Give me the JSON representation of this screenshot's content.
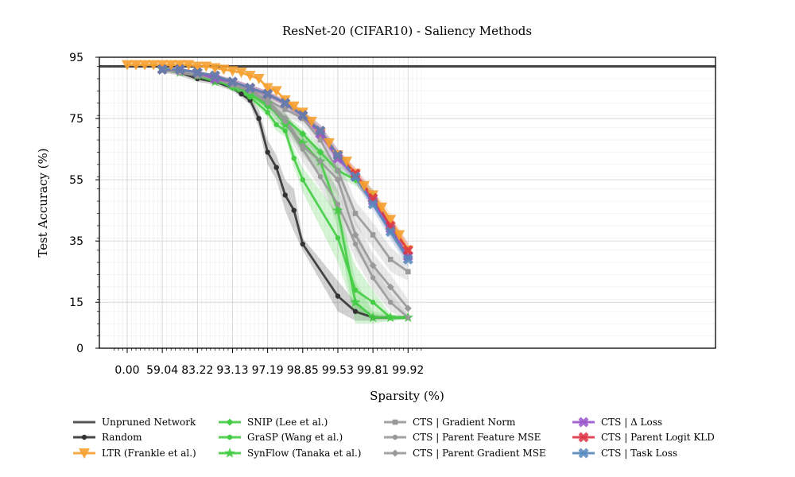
{
  "chart_data": {
    "type": "line",
    "title": "ResNet-20 (CIFAR10) - Saliency Methods",
    "xlabel": "Sparsity (%)",
    "ylabel": "Test Accuracy (%)",
    "ylim": [
      0,
      95
    ],
    "y_ticks": [
      0,
      15,
      35,
      55,
      75,
      95
    ],
    "x_tick_labels": [
      "0.00",
      "59.04",
      "83.22",
      "93.13",
      "97.19",
      "98.85",
      "99.53",
      "99.81",
      "99.92"
    ],
    "x_positions": [
      "0.00",
      "20.00",
      "36.00",
      "48.80",
      "59.04",
      "67.23",
      "73.79",
      "79.03",
      "83.22",
      "86.58",
      "89.26",
      "91.41",
      "93.13",
      "94.50",
      "95.60",
      "96.48",
      "97.19",
      "97.75",
      "98.20",
      "98.56",
      "98.85",
      "99.08",
      "99.26",
      "99.41",
      "99.53",
      "99.62",
      "99.70",
      "99.76",
      "99.81",
      "99.85",
      "99.88",
      "99.90",
      "99.92"
    ],
    "grid": true,
    "legend_position": "bottom",
    "series": [
      {
        "name": "Unpruned Network",
        "color": "#444444",
        "marker": "none",
        "idx": [
          0,
          34
        ],
        "y": [
          92,
          92
        ]
      },
      {
        "name": "Random",
        "color": "#333333",
        "marker": "circle",
        "idx": [
          4,
          6,
          8,
          10,
          12,
          13,
          14,
          15,
          16,
          17,
          18,
          19,
          20,
          24,
          26,
          28,
          32
        ],
        "y": [
          91,
          90,
          88,
          87,
          85,
          83,
          81,
          75,
          64,
          59,
          50,
          45,
          34,
          17,
          12,
          10,
          10
        ],
        "band": [
          1,
          1,
          1,
          1,
          1,
          1,
          1.5,
          3,
          4,
          4,
          5,
          7,
          2,
          5,
          3,
          1,
          0.5
        ]
      },
      {
        "name": "SNIP (Lee et al.)",
        "color": "#44cc44",
        "marker": "diamond",
        "idx": [
          4,
          6,
          8,
          10,
          12,
          14,
          16,
          18,
          20,
          22,
          24,
          26,
          28,
          30,
          32
        ],
        "y": [
          91,
          90,
          89,
          88,
          86,
          83,
          79,
          75,
          70,
          64,
          58,
          55,
          50,
          39,
          30
        ],
        "band": [
          0.5,
          0.5,
          0.5,
          0.5,
          1,
          1,
          1,
          1.5,
          1.5,
          2,
          2,
          2,
          2,
          2,
          2
        ]
      },
      {
        "name": "GraSP (Wang et al.)",
        "color": "#44cc44",
        "marker": "circle",
        "idx": [
          4,
          6,
          8,
          10,
          12,
          14,
          16,
          17,
          18,
          19,
          20,
          24,
          26,
          28,
          30,
          32
        ],
        "y": [
          91,
          90,
          89,
          88,
          85,
          82,
          77,
          73,
          71,
          62,
          55,
          36,
          19,
          15,
          10,
          10
        ],
        "band": [
          0.5,
          0.5,
          0.5,
          1,
          1,
          1,
          1.5,
          2,
          2,
          3,
          4,
          8,
          8,
          4,
          1,
          0.5
        ]
      },
      {
        "name": "SynFlow (Tanaka et al.)",
        "color": "#44cc44",
        "marker": "star",
        "idx": [
          4,
          6,
          8,
          10,
          12,
          14,
          16,
          18,
          20,
          22,
          24,
          26,
          28,
          30,
          32
        ],
        "y": [
          91,
          90,
          89,
          87,
          86,
          83,
          80,
          73,
          67,
          61,
          45,
          15,
          10,
          10,
          10
        ],
        "band": [
          0.5,
          0.5,
          0.5,
          0.5,
          1,
          1,
          1.5,
          2,
          3,
          4,
          6,
          7,
          2,
          1,
          0.5
        ]
      },
      {
        "name": "LTR (Frankle et al.)",
        "color": "#f5a030",
        "marker": "triangle-down",
        "idx": [
          0,
          1,
          2,
          3,
          4,
          5,
          6,
          7,
          8,
          9,
          10,
          11,
          12,
          13,
          14,
          15,
          16,
          17,
          18,
          19,
          20,
          21,
          22,
          23,
          24,
          25,
          26,
          27,
          28,
          29,
          30,
          31,
          32
        ],
        "y": [
          92.5,
          92.5,
          92.5,
          92.5,
          92.5,
          92.5,
          92.5,
          92.5,
          92,
          92,
          91.5,
          91,
          90.5,
          90,
          89,
          88,
          85,
          84,
          81,
          79,
          77,
          74,
          70,
          67,
          63,
          61,
          57,
          53,
          50,
          46,
          42,
          37,
          32
        ],
        "band": [
          0.3,
          0.3,
          0.3,
          0.3,
          0.3,
          0.3,
          0.3,
          0.3,
          0.3,
          0.3,
          0.3,
          0.3,
          0.3,
          0.3,
          0.4,
          0.4,
          0.5,
          0.5,
          0.6,
          0.7,
          0.8,
          0.9,
          1,
          1,
          1,
          1.2,
          1.2,
          1.5,
          1.5,
          2,
          2,
          2,
          2
        ]
      },
      {
        "name": "CTS | Gradient Norm",
        "color": "#999999",
        "marker": "square",
        "idx": [
          4,
          6,
          8,
          10,
          12,
          14,
          16,
          18,
          20,
          22,
          24,
          26,
          28,
          30,
          32
        ],
        "y": [
          91,
          90,
          89,
          88,
          86,
          84,
          81,
          78,
          75,
          68,
          58,
          44,
          37,
          29,
          25
        ],
        "band": [
          0.5,
          0.5,
          0.5,
          0.5,
          1,
          1,
          1.5,
          2,
          2,
          3,
          4,
          4,
          4,
          4,
          3
        ]
      },
      {
        "name": "CTS | Parent Feature MSE",
        "color": "#999999",
        "marker": "circle",
        "idx": [
          4,
          6,
          8,
          10,
          12,
          14,
          16,
          18,
          20,
          22,
          24,
          26,
          28,
          30,
          32
        ],
        "y": [
          91,
          90,
          89,
          88,
          86,
          84,
          80,
          74,
          65,
          56,
          47,
          34,
          23,
          15,
          10
        ],
        "band": [
          0.5,
          0.5,
          0.5,
          1,
          1,
          1,
          2,
          3,
          4,
          4,
          5,
          5,
          4,
          3,
          1
        ]
      },
      {
        "name": "CTS | Parent Gradient MSE",
        "color": "#999999",
        "marker": "diamond",
        "idx": [
          4,
          6,
          8,
          10,
          12,
          14,
          16,
          18,
          20,
          22,
          24,
          26,
          28,
          30,
          32
        ],
        "y": [
          91,
          90,
          89,
          88,
          86,
          84,
          81,
          75,
          66,
          61,
          55,
          37,
          27,
          20,
          13
        ],
        "band": [
          0.5,
          0.5,
          0.5,
          1,
          1,
          1,
          2,
          2,
          3,
          4,
          5,
          5,
          4,
          4,
          3
        ]
      },
      {
        "name": "CTS | Δ Loss",
        "color": "#9955cc",
        "marker": "x",
        "idx": [
          4,
          6,
          8,
          10,
          12,
          14,
          16,
          18,
          20,
          22,
          24,
          26,
          28,
          30,
          32
        ],
        "y": [
          91,
          91,
          90,
          88,
          87,
          85,
          83,
          80,
          76,
          70,
          62,
          56,
          48,
          39,
          30
        ],
        "band": [
          0.5,
          0.5,
          0.5,
          0.5,
          1,
          1,
          1,
          1,
          1.5,
          2,
          2,
          2,
          2,
          2.5,
          2.5
        ]
      },
      {
        "name": "CTS | Parent Logit KLD",
        "color": "#dd3344",
        "marker": "x",
        "idx": [
          4,
          6,
          8,
          10,
          12,
          14,
          16,
          18,
          20,
          22,
          24,
          26,
          28,
          30,
          32
        ],
        "y": [
          91,
          91,
          90,
          89,
          87,
          85,
          83,
          80,
          76,
          71,
          63,
          57,
          49,
          40,
          32
        ],
        "band": [
          0.5,
          0.5,
          0.5,
          0.5,
          1,
          1,
          1,
          1,
          1.5,
          2,
          2,
          2,
          2.5,
          2.5,
          2.5
        ]
      },
      {
        "name": "CTS | Task Loss",
        "color": "#5588bb",
        "marker": "x",
        "idx": [
          4,
          6,
          8,
          10,
          12,
          14,
          16,
          18,
          20,
          22,
          24,
          26,
          28,
          30,
          32
        ],
        "y": [
          91,
          91,
          90,
          89,
          87,
          85,
          83,
          80,
          76,
          71,
          63,
          56,
          47,
          38,
          29
        ],
        "band": [
          0.5,
          0.5,
          0.5,
          0.5,
          1,
          1,
          1,
          1,
          1.5,
          2,
          2,
          2,
          2,
          2.5,
          2.5
        ]
      }
    ],
    "legend_order": [
      0,
      1,
      5,
      2,
      3,
      4,
      6,
      7,
      8,
      9,
      10,
      11
    ]
  }
}
